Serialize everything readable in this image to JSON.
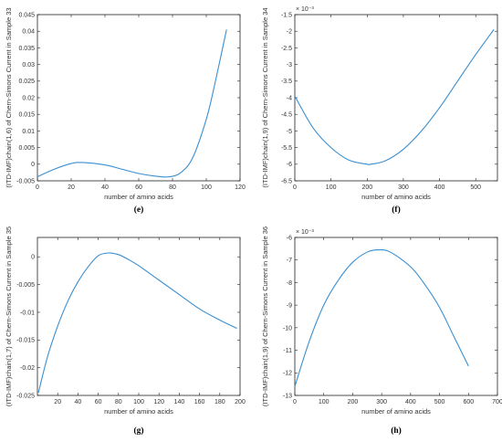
{
  "chart_data": [
    {
      "type": "line",
      "caption": "(e)",
      "xlabel": "number of amino acids",
      "ylabel": "(ITD-IMF)chain(1,6) of Chern-Simons Current in Sample 33",
      "exponent": "",
      "xlim": [
        0,
        120
      ],
      "ylim": [
        -0.005,
        0.045
      ],
      "xticks": [
        0,
        20,
        40,
        60,
        80,
        100,
        120
      ],
      "xtick_labels": [
        "0",
        "20",
        "40",
        "60",
        "80",
        "100",
        "120"
      ],
      "yticks": [
        -0.005,
        0,
        0.005,
        0.01,
        0.015,
        0.02,
        0.025,
        0.03,
        0.035,
        0.04,
        0.045
      ],
      "ytick_labels": [
        "-0.005",
        "0",
        "0.005",
        "0.01",
        "0.015",
        "0.02",
        "0.025",
        "0.03",
        "0.035",
        "0.04",
        "0.045"
      ],
      "series": [
        {
          "color": "#3a8fd0",
          "x": [
            0,
            10,
            20,
            27,
            40,
            50,
            60,
            70,
            78,
            85,
            92,
            100,
            105,
            112
          ],
          "y": [
            -0.0038,
            -0.0015,
            0.0002,
            0.0005,
            -0.0002,
            -0.0015,
            -0.0028,
            -0.0036,
            -0.0038,
            -0.0025,
            0.002,
            0.0135,
            0.024,
            0.0405
          ]
        }
      ]
    },
    {
      "type": "line",
      "caption": "(f)",
      "xlabel": "number of amino acids",
      "ylabel": "(ITD-IMF)chain(1,9) of Chern-Simons Current in Sample 34",
      "exponent": "× 10⁻³",
      "xlim": [
        0,
        560
      ],
      "ylim": [
        -6.5,
        -1.5
      ],
      "xticks": [
        0,
        100,
        200,
        300,
        400,
        500
      ],
      "xtick_labels": [
        "0",
        "100",
        "200",
        "300",
        "400",
        "500"
      ],
      "yticks": [
        -6.5,
        -6,
        -5.5,
        -5,
        -4.5,
        -4,
        -3.5,
        -3,
        -2.5,
        -2,
        -1.5
      ],
      "ytick_labels": [
        "-6.5",
        "-6",
        "-5.5",
        "-5",
        "-4.5",
        "-4",
        "-3.5",
        "-3",
        "-2.5",
        "-2",
        "-1.5"
      ],
      "series": [
        {
          "color": "#3a8fd0",
          "x": [
            0,
            50,
            100,
            150,
            200,
            210,
            250,
            300,
            350,
            400,
            450,
            500,
            550
          ],
          "y": [
            -3.95,
            -4.9,
            -5.5,
            -5.88,
            -6.0,
            -6.0,
            -5.9,
            -5.55,
            -5.0,
            -4.3,
            -3.5,
            -2.7,
            -1.95
          ]
        }
      ]
    },
    {
      "type": "line",
      "caption": "(g)",
      "xlabel": "number of amino acids",
      "ylabel": "(ITD-IMF)chain(1,7) of Chern-Simons Current in Sample 35",
      "exponent": "",
      "xlim": [
        0,
        200
      ],
      "ylim": [
        -0.025,
        0.0035
      ],
      "xticks": [
        20,
        40,
        60,
        80,
        100,
        120,
        140,
        160,
        180,
        200
      ],
      "xtick_labels": [
        "20",
        "40",
        "60",
        "80",
        "100",
        "120",
        "140",
        "160",
        "180",
        "200"
      ],
      "yticks": [
        -0.025,
        -0.02,
        -0.015,
        -0.01,
        -0.005,
        0
      ],
      "ytick_labels": [
        "-0.025",
        "-0.02",
        "-0.015",
        "-0.01",
        "-0.005",
        "0"
      ],
      "series": [
        {
          "color": "#3a8fd0",
          "x": [
            1,
            10,
            20,
            30,
            40,
            50,
            60,
            70,
            80,
            90,
            100,
            120,
            140,
            160,
            180,
            197
          ],
          "y": [
            -0.0245,
            -0.018,
            -0.0125,
            -0.008,
            -0.0045,
            -0.0018,
            0.0002,
            0.0007,
            0.0004,
            -0.0005,
            -0.0016,
            -0.0042,
            -0.0068,
            -0.0094,
            -0.0114,
            -0.0129
          ]
        }
      ]
    },
    {
      "type": "line",
      "caption": "(h)",
      "xlabel": "number of amino acids",
      "ylabel": "(ITD-IMF)chain(1,9) of Chern-Simons Current in Sample 36",
      "exponent": "× 10⁻³",
      "xlim": [
        0,
        700
      ],
      "ylim": [
        -13,
        -6
      ],
      "xticks": [
        0,
        100,
        200,
        300,
        400,
        500,
        600,
        700
      ],
      "xtick_labels": [
        "0",
        "100",
        "200",
        "300",
        "400",
        "500",
        "600",
        "700"
      ],
      "yticks": [
        -13,
        -12,
        -11,
        -10,
        -9,
        -8,
        -7,
        -6
      ],
      "ytick_labels": [
        "-13",
        "-12",
        "-11",
        "-10",
        "-9",
        "-8",
        "-7",
        "-6"
      ],
      "series": [
        {
          "color": "#3a8fd0",
          "x": [
            0,
            50,
            100,
            150,
            200,
            250,
            290,
            330,
            400,
            450,
            500,
            550,
            600
          ],
          "y": [
            -12.6,
            -10.6,
            -9.0,
            -7.9,
            -7.1,
            -6.65,
            -6.55,
            -6.65,
            -7.3,
            -8.1,
            -9.1,
            -10.4,
            -11.7
          ]
        }
      ]
    }
  ]
}
